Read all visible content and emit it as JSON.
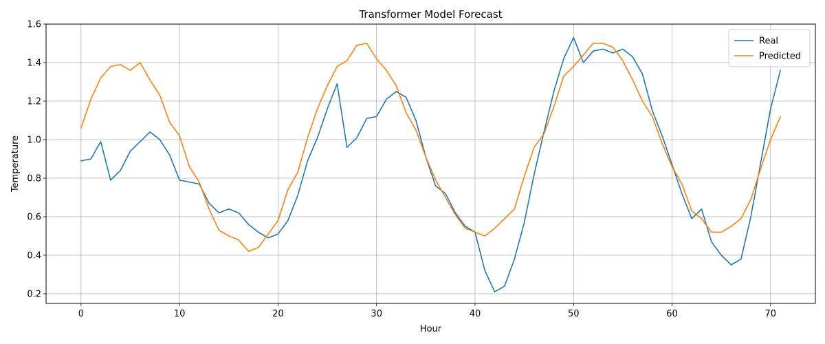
{
  "chart_data": {
    "type": "line",
    "title": "Transformer Model Forecast",
    "xlabel": "Hour",
    "ylabel": "Temperature",
    "xlim": [
      -3.55,
      74.55
    ],
    "ylim": [
      0.15,
      1.6
    ],
    "xticks": [
      0,
      10,
      20,
      30,
      40,
      50,
      60,
      70
    ],
    "yticks": [
      0.2,
      0.4,
      0.6,
      0.8,
      1.0,
      1.2,
      1.4,
      1.6
    ],
    "ytick_labels": [
      "0.2",
      "0.4",
      "0.6",
      "0.8",
      "1.0",
      "1.2",
      "1.4",
      "1.6"
    ],
    "grid": true,
    "legend_position": "top-right",
    "series": [
      {
        "name": "Real",
        "color": "#1f77b4",
        "values": [
          0.89,
          0.9,
          0.99,
          0.79,
          0.84,
          0.94,
          0.99,
          1.04,
          1.0,
          0.92,
          0.79,
          0.78,
          0.77,
          0.67,
          0.62,
          0.64,
          0.62,
          0.56,
          0.52,
          0.49,
          0.51,
          0.58,
          0.71,
          0.89,
          1.01,
          1.16,
          1.29,
          0.96,
          1.01,
          1.11,
          1.12,
          1.21,
          1.25,
          1.22,
          1.1,
          0.91,
          0.76,
          0.72,
          0.62,
          0.55,
          0.52,
          0.32,
          0.21,
          0.24,
          0.38,
          0.57,
          0.82,
          1.04,
          1.25,
          1.42,
          1.53,
          1.4,
          1.46,
          1.47,
          1.45,
          1.47,
          1.43,
          1.34,
          1.15,
          1.02,
          0.87,
          0.72,
          0.59,
          0.64,
          0.47,
          0.4,
          0.35,
          0.38,
          0.6,
          0.88,
          1.16,
          1.36
        ]
      },
      {
        "name": "Predicted",
        "color": "#ff7f0e",
        "values": [
          1.06,
          1.21,
          1.32,
          1.38,
          1.39,
          1.36,
          1.4,
          1.31,
          1.23,
          1.09,
          1.02,
          0.86,
          0.78,
          0.64,
          0.53,
          0.5,
          0.48,
          0.42,
          0.44,
          0.51,
          0.58,
          0.74,
          0.83,
          1.01,
          1.16,
          1.28,
          1.38,
          1.41,
          1.49,
          1.5,
          1.42,
          1.36,
          1.28,
          1.14,
          1.05,
          0.91,
          0.79,
          0.7,
          0.61,
          0.54,
          0.52,
          0.5,
          0.54,
          0.59,
          0.64,
          0.81,
          0.96,
          1.03,
          1.17,
          1.33,
          1.38,
          1.44,
          1.5,
          1.5,
          1.48,
          1.41,
          1.31,
          1.2,
          1.12,
          0.98,
          0.86,
          0.77,
          0.63,
          0.59,
          0.52,
          0.52,
          0.55,
          0.59,
          0.69,
          0.85,
          1.0,
          1.12
        ]
      }
    ]
  }
}
